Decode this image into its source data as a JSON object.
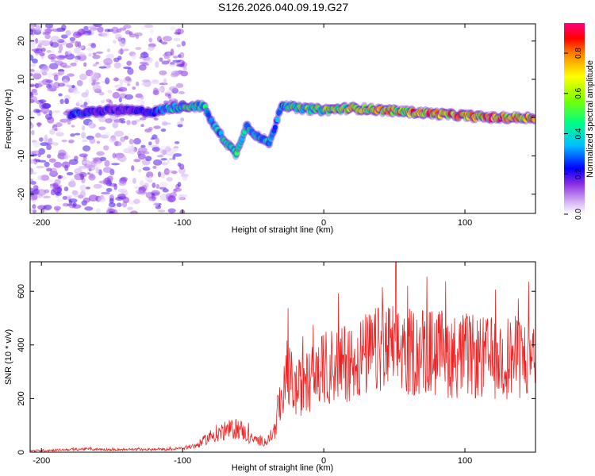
{
  "figure_title": "S126.2026.040.09.19.G27",
  "chart_data": [
    {
      "type": "heatmap",
      "title": "S126.2026.040.09.19.G27",
      "xlabel": "Height of straight line (km)",
      "ylabel": "Frequency (Hz)",
      "xlim": [
        -208,
        150
      ],
      "ylim": [
        -25,
        24.5
      ],
      "xticks": [
        -200,
        -100,
        0,
        100
      ],
      "yticks": [
        -20,
        -10,
        0,
        10,
        20
      ],
      "colorbar": {
        "label": "Normalized spectral amplitude",
        "range": [
          0,
          0.95
        ],
        "ticks": [
          0.0,
          0.2,
          0.4,
          0.6,
          0.8
        ],
        "colormap": [
          "#ffffff",
          "#8a2be2",
          "#0000ff",
          "#00bfff",
          "#00ff00",
          "#ffff00",
          "#ff8000",
          "#ff0000",
          "#ff0080"
        ]
      },
      "ridge": [
        {
          "x": -175,
          "y": 1.0,
          "amp": 0.3
        },
        {
          "x": -150,
          "y": 2.0,
          "amp": 0.2
        },
        {
          "x": -120,
          "y": 1.5,
          "amp": 0.25
        },
        {
          "x": -110,
          "y": 2.5,
          "amp": 0.4
        },
        {
          "x": -95,
          "y": 3.0,
          "amp": 0.5
        },
        {
          "x": -85,
          "y": 3.0,
          "amp": 0.45
        },
        {
          "x": -78,
          "y": -2.0,
          "amp": 0.4
        },
        {
          "x": -70,
          "y": -6.0,
          "amp": 0.45
        },
        {
          "x": -62,
          "y": -9.5,
          "amp": 0.5
        },
        {
          "x": -55,
          "y": -2.0,
          "amp": 0.4
        },
        {
          "x": -45,
          "y": -5.5,
          "amp": 0.45
        },
        {
          "x": -38,
          "y": -6.5,
          "amp": 0.35
        },
        {
          "x": -30,
          "y": 3.5,
          "amp": 0.4
        },
        {
          "x": -20,
          "y": 2.5,
          "amp": 0.55
        },
        {
          "x": 0,
          "y": 2.0,
          "amp": 0.6
        },
        {
          "x": 20,
          "y": 2.5,
          "amp": 0.7
        },
        {
          "x": 40,
          "y": 2.0,
          "amp": 0.75
        },
        {
          "x": 60,
          "y": 1.5,
          "amp": 0.8
        },
        {
          "x": 80,
          "y": 1.0,
          "amp": 0.85
        },
        {
          "x": 100,
          "y": 0.5,
          "amp": 0.85
        },
        {
          "x": 120,
          "y": 0.0,
          "amp": 0.9
        },
        {
          "x": 140,
          "y": 0.0,
          "amp": 0.85
        }
      ]
    },
    {
      "type": "line",
      "title": "",
      "xlabel": "Height of straight line (km)",
      "ylabel": "SNR (10 * v/v)",
      "xlim": [
        -208,
        150
      ],
      "ylim": [
        0,
        710
      ],
      "xticks": [
        -200,
        -100,
        0,
        100
      ],
      "yticks": [
        0,
        200,
        400,
        600
      ],
      "series": [
        {
          "name": "SNR",
          "color": "#ee2222",
          "x": [
            -208,
            -190,
            -170,
            -150,
            -130,
            -110,
            -100,
            -90,
            -80,
            -70,
            -60,
            -50,
            -40,
            -35,
            -30,
            -25,
            -20,
            -10,
            0,
            10,
            20,
            30,
            40,
            50,
            60,
            70,
            80,
            90,
            100,
            110,
            120,
            130,
            140,
            150
          ],
          "y": [
            5,
            8,
            12,
            10,
            10,
            10,
            15,
            25,
            60,
            80,
            90,
            45,
            40,
            80,
            200,
            290,
            230,
            270,
            310,
            330,
            340,
            360,
            380,
            390,
            370,
            380,
            370,
            360,
            360,
            350,
            350,
            355,
            350,
            345
          ]
        }
      ]
    }
  ]
}
